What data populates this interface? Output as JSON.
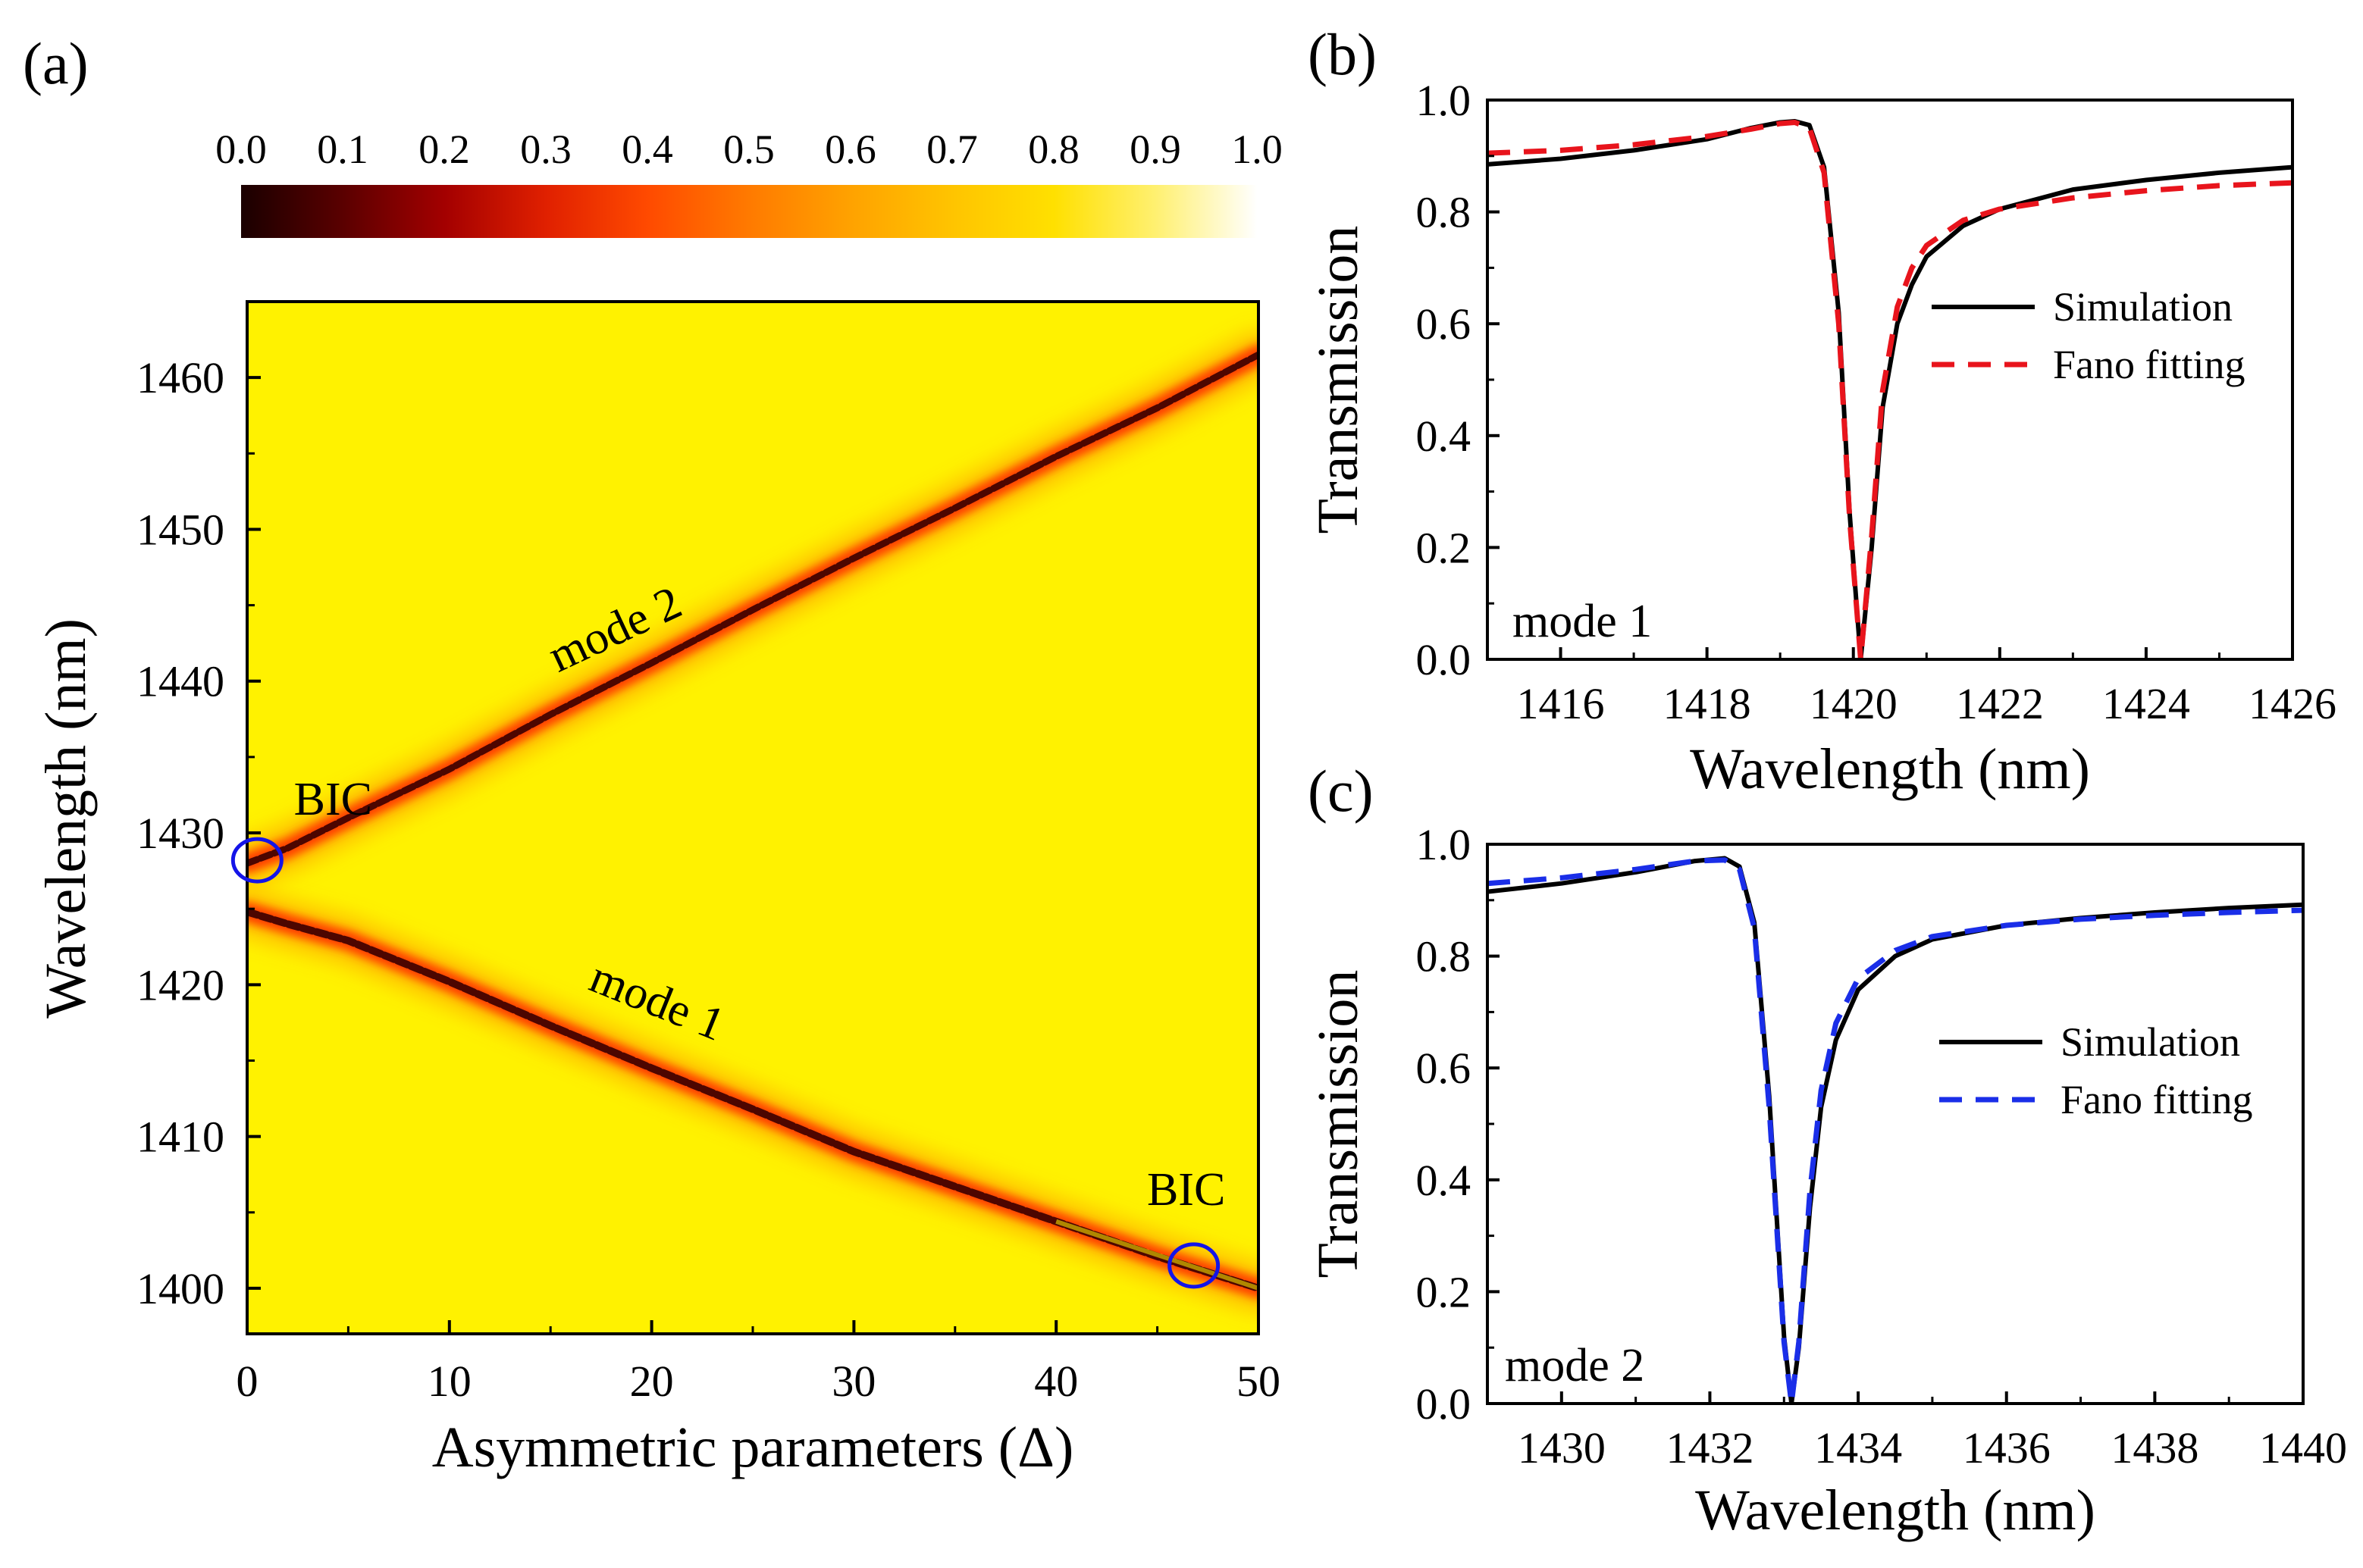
{
  "chart_data": [
    {
      "panel": "(a)",
      "type": "heatmap",
      "xlabel": "Asymmetric parameters (Δ)",
      "ylabel": "Wavelength (nm)",
      "xlim": [
        0,
        50
      ],
      "ylim": [
        1397,
        1465
      ],
      "xticks": [
        0,
        10,
        20,
        30,
        40,
        50
      ],
      "yticks": [
        1400,
        1410,
        1420,
        1430,
        1440,
        1450,
        1460
      ],
      "colorbar": {
        "ticks": [
          "0.0",
          "0.1",
          "0.2",
          "0.3",
          "0.4",
          "0.5",
          "0.6",
          "0.7",
          "0.8",
          "0.9",
          "1.0"
        ],
        "range": [
          0,
          1
        ],
        "colors": [
          "#1a0000",
          "#5a0000",
          "#a30000",
          "#e02000",
          "#ff4a00",
          "#ff7a00",
          "#ffa200",
          "#ffc400",
          "#ffe000",
          "#fff070",
          "#ffffff"
        ]
      },
      "background_color": "#fff200",
      "modes": [
        {
          "name": "mode 2",
          "label": "mode 2",
          "x": [
            0,
            2,
            5,
            10,
            15,
            20,
            25,
            30,
            35,
            40,
            45,
            50
          ],
          "y": [
            1428.0,
            1429.0,
            1431.0,
            1434.2,
            1437.8,
            1441.2,
            1444.7,
            1448.1,
            1451.4,
            1454.8,
            1458.0,
            1461.5
          ]
        },
        {
          "name": "mode 1",
          "label": "mode 1",
          "x": [
            0,
            2,
            5,
            10,
            15,
            20,
            25,
            30,
            35,
            40,
            45,
            50
          ],
          "y": [
            1424.8,
            1424.0,
            1422.9,
            1420.2,
            1417.3,
            1414.5,
            1411.8,
            1409.0,
            1406.7,
            1404.4,
            1402.1,
            1400.0
          ]
        }
      ],
      "annotations": [
        {
          "text": "BIC",
          "x": 0.5,
          "y": 1428.2
        },
        {
          "text": "BIC",
          "x": 46.8,
          "y": 1401.5
        }
      ]
    },
    {
      "panel": "(b)",
      "type": "line",
      "xlabel": "Wavelength (nm)",
      "ylabel": "Transmission",
      "xlim": [
        1415,
        1426
      ],
      "ylim": [
        0,
        1.0
      ],
      "xticks": [
        1416,
        1418,
        1420,
        1422,
        1424,
        1426
      ],
      "yticks": [
        "0.0",
        "0.2",
        "0.4",
        "0.6",
        "0.8",
        "1.0"
      ],
      "annotation": "mode 1",
      "series": [
        {
          "name": "Simulation",
          "style": "solid",
          "color": "#000000",
          "x": [
            1415,
            1416,
            1417,
            1418,
            1418.6,
            1419.0,
            1419.2,
            1419.4,
            1419.6,
            1419.8,
            1419.95,
            1420.1,
            1420.25,
            1420.4,
            1420.6,
            1420.8,
            1421.0,
            1421.5,
            1422.0,
            1423.0,
            1424.0,
            1425.0,
            1426.0
          ],
          "y": [
            0.885,
            0.895,
            0.91,
            0.93,
            0.95,
            0.96,
            0.962,
            0.955,
            0.88,
            0.62,
            0.26,
            0.0,
            0.2,
            0.45,
            0.6,
            0.67,
            0.72,
            0.775,
            0.805,
            0.84,
            0.857,
            0.87,
            0.88
          ]
        },
        {
          "name": "Fano fitting",
          "style": "dashed",
          "color": "#e8141c",
          "x": [
            1415,
            1416,
            1417,
            1418,
            1418.6,
            1419.0,
            1419.2,
            1419.4,
            1419.6,
            1419.8,
            1419.95,
            1420.1,
            1420.25,
            1420.4,
            1420.6,
            1420.8,
            1421.0,
            1421.5,
            1422.0,
            1423.0,
            1424.0,
            1425.0,
            1426.0
          ],
          "y": [
            0.905,
            0.91,
            0.92,
            0.935,
            0.948,
            0.958,
            0.96,
            0.95,
            0.87,
            0.6,
            0.25,
            0.0,
            0.22,
            0.48,
            0.63,
            0.7,
            0.74,
            0.785,
            0.805,
            0.825,
            0.838,
            0.847,
            0.852
          ]
        }
      ]
    },
    {
      "panel": "(c)",
      "type": "line",
      "xlabel": "Wavelength (nm)",
      "ylabel": "Transmission",
      "xlim": [
        1429,
        1440
      ],
      "ylim": [
        0,
        1.0
      ],
      "xticks": [
        1430,
        1432,
        1434,
        1436,
        1438,
        1440
      ],
      "yticks": [
        "0.0",
        "0.2",
        "0.4",
        "0.6",
        "0.8",
        "1.0"
      ],
      "annotation": "mode 2",
      "series": [
        {
          "name": "Simulation",
          "style": "solid",
          "color": "#000000",
          "x": [
            1429,
            1430,
            1431,
            1431.8,
            1432.2,
            1432.4,
            1432.6,
            1432.8,
            1433.0,
            1433.1,
            1433.2,
            1433.35,
            1433.5,
            1433.7,
            1434.0,
            1434.5,
            1435.0,
            1436.0,
            1437.0,
            1438.0,
            1439.0,
            1440.0
          ],
          "y": [
            0.915,
            0.93,
            0.95,
            0.97,
            0.975,
            0.96,
            0.86,
            0.55,
            0.12,
            0.0,
            0.1,
            0.35,
            0.53,
            0.65,
            0.74,
            0.8,
            0.83,
            0.855,
            0.868,
            0.878,
            0.886,
            0.892
          ]
        },
        {
          "name": "Fano fitting",
          "style": "dashed",
          "color": "#1a2ee8",
          "x": [
            1429,
            1430,
            1431,
            1431.8,
            1432.2,
            1432.4,
            1432.6,
            1432.8,
            1433.0,
            1433.1,
            1433.2,
            1433.35,
            1433.5,
            1433.7,
            1434.0,
            1434.5,
            1435.0,
            1436.0,
            1437.0,
            1438.0,
            1439.0,
            1440.0
          ],
          "y": [
            0.93,
            0.94,
            0.955,
            0.97,
            0.972,
            0.955,
            0.85,
            0.53,
            0.11,
            0.0,
            0.11,
            0.38,
            0.56,
            0.68,
            0.76,
            0.81,
            0.835,
            0.855,
            0.866,
            0.873,
            0.878,
            0.882
          ]
        }
      ]
    }
  ]
}
